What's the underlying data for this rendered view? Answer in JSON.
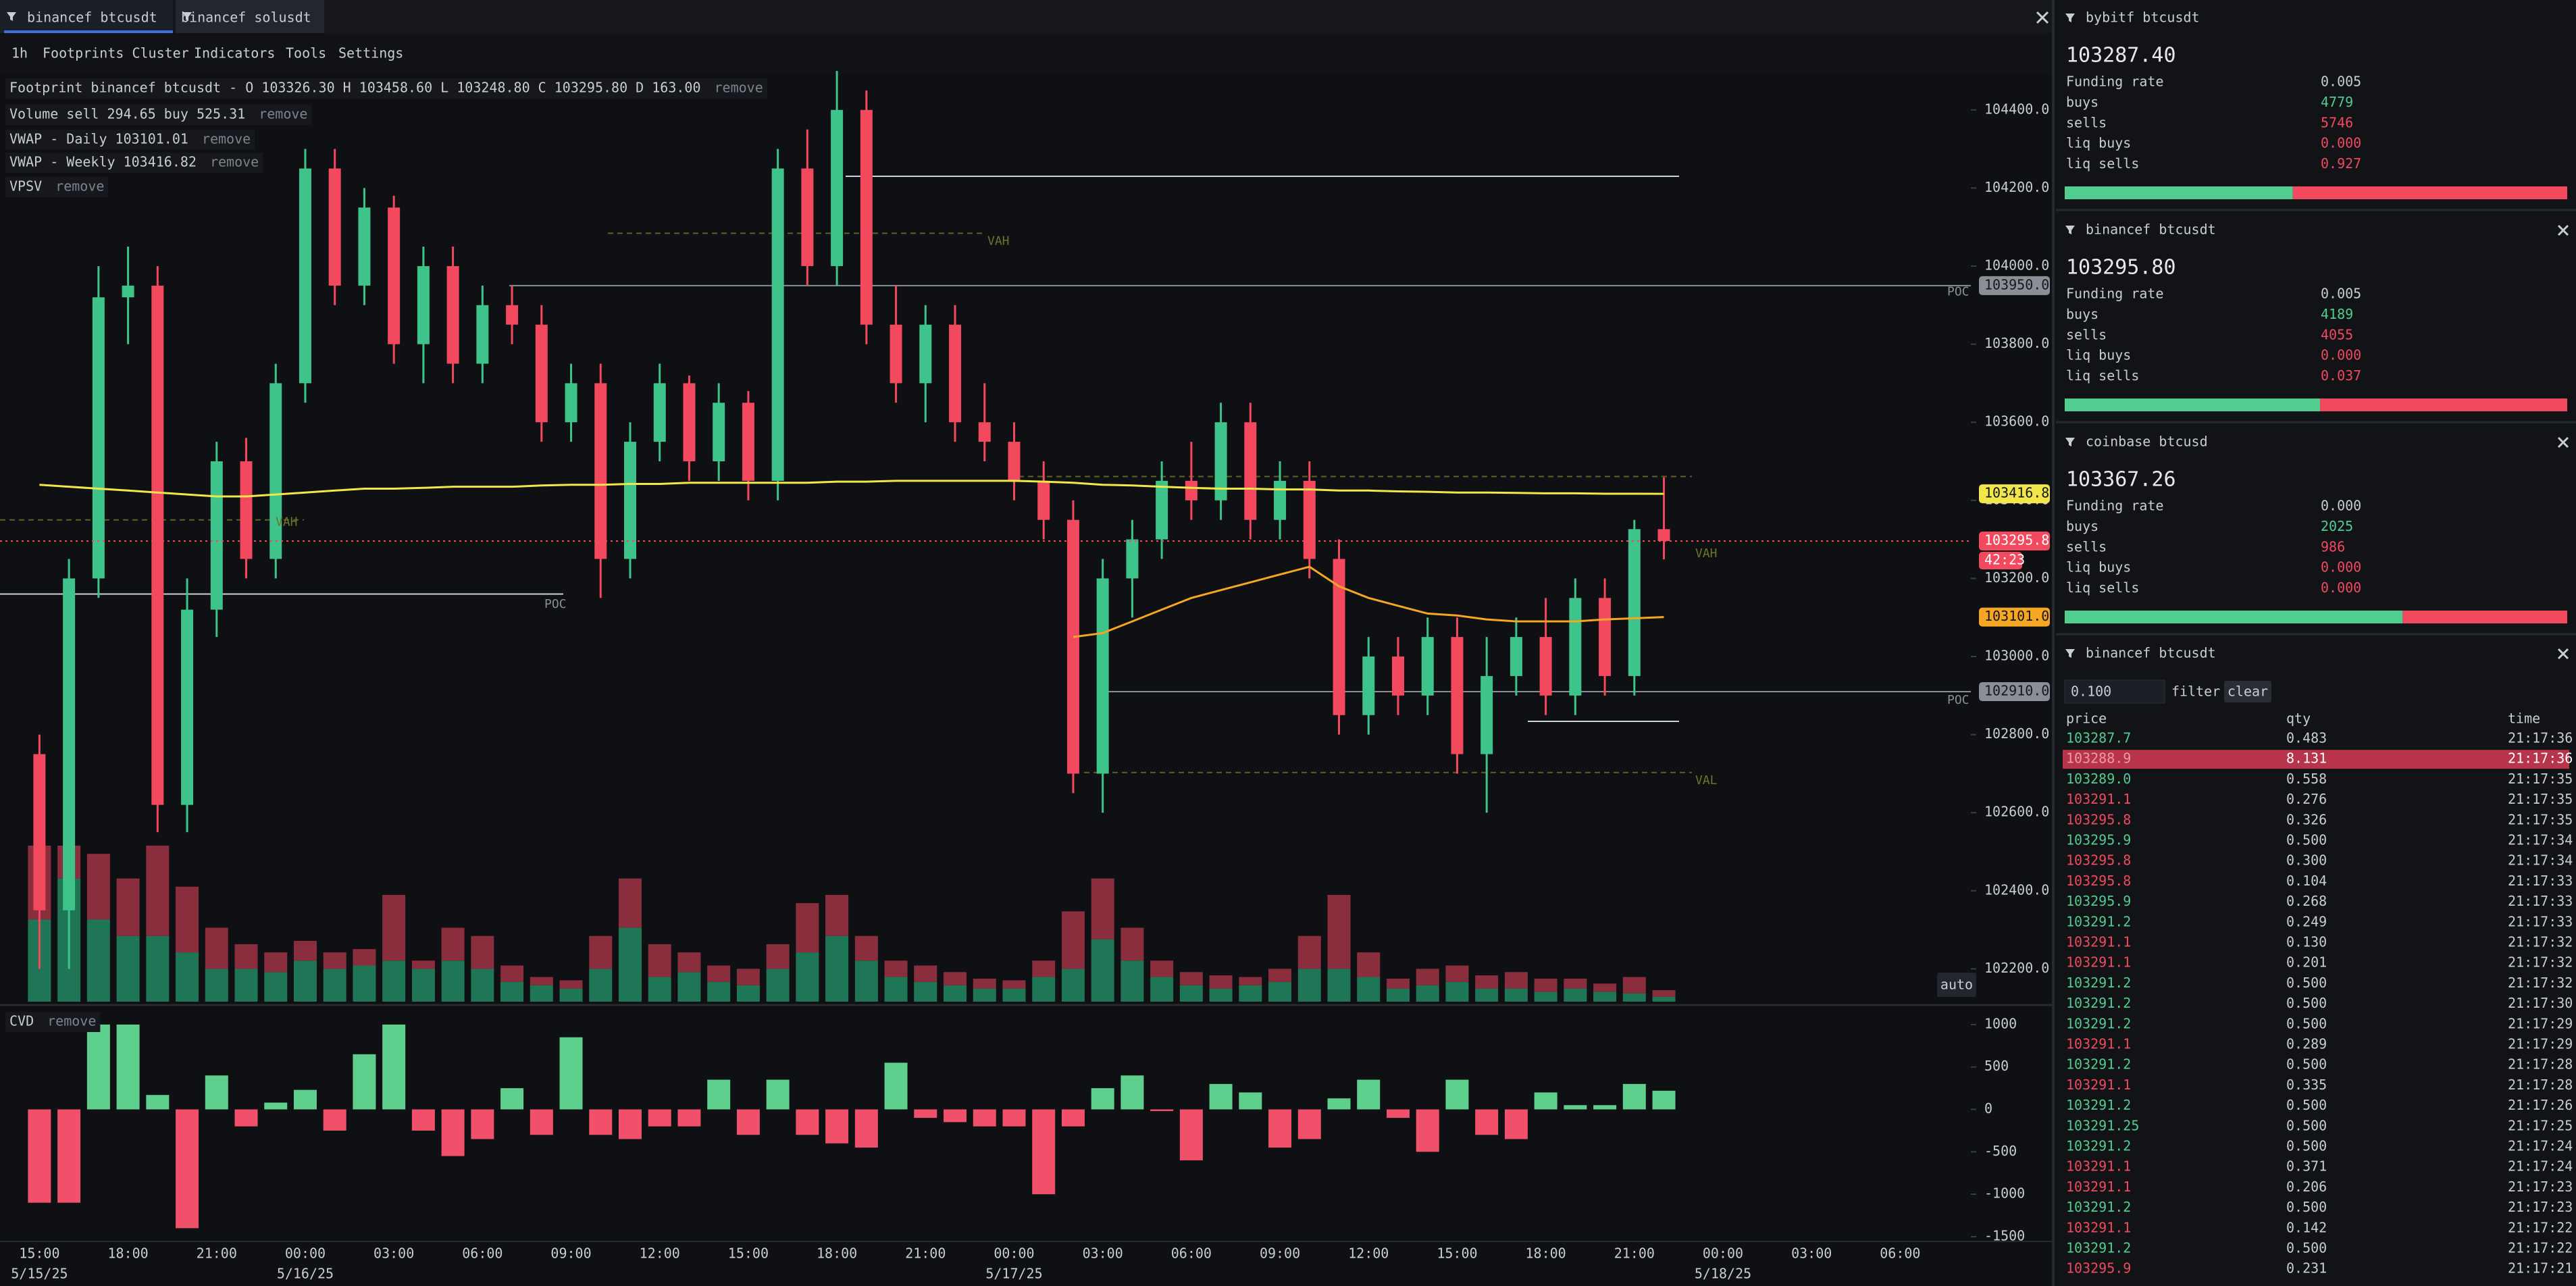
{
  "tabs": [
    "binancef btcusdt",
    "binancef solusdt"
  ],
  "menu": [
    "1h",
    "Footprints Cluster",
    "Indicators",
    "Tools",
    "Settings"
  ],
  "legend": [
    {
      "text": "Footprint binancef btcusdt - O 103326.30 H 103458.60 L 103248.80 C 103295.80 D 163.00",
      "action": "remove"
    },
    {
      "text": "Volume sell 294.65 buy 525.31",
      "action": "remove"
    },
    {
      "text": "VWAP - Daily 103101.01",
      "action": "remove"
    },
    {
      "text": "VWAP - Weekly 103416.82",
      "action": "remove"
    },
    {
      "text": "VPSV",
      "action": "remove"
    }
  ],
  "auto": "auto",
  "chart_data": [
    {
      "type": "candlestick",
      "ohlc": [
        [
          102750,
          102800,
          102200,
          102350
        ],
        [
          102350,
          103250,
          102200,
          103200
        ],
        [
          103200,
          104000,
          103150,
          103920
        ],
        [
          103920,
          104050,
          103800,
          103950
        ],
        [
          103950,
          104000,
          102550,
          102620
        ],
        [
          102620,
          103200,
          102550,
          103120
        ],
        [
          103120,
          103550,
          103050,
          103500
        ],
        [
          103500,
          103560,
          103200,
          103250
        ],
        [
          103250,
          103750,
          103200,
          103700
        ],
        [
          103700,
          104300,
          103650,
          104250
        ],
        [
          104250,
          104300,
          103900,
          103950
        ],
        [
          103950,
          104200,
          103900,
          104150
        ],
        [
          104150,
          104180,
          103750,
          103800
        ],
        [
          103800,
          104050,
          103700,
          104000
        ],
        [
          104000,
          104050,
          103700,
          103750
        ],
        [
          103750,
          103950,
          103700,
          103900
        ],
        [
          103900,
          103950,
          103800,
          103850
        ],
        [
          103850,
          103900,
          103550,
          103600
        ],
        [
          103600,
          103750,
          103550,
          103700
        ],
        [
          103700,
          103750,
          103150,
          103250
        ],
        [
          103250,
          103600,
          103200,
          103550
        ],
        [
          103550,
          103750,
          103500,
          103700
        ],
        [
          103700,
          103720,
          103450,
          103500
        ],
        [
          103500,
          103700,
          103450,
          103650
        ],
        [
          103650,
          103680,
          103400,
          103450
        ],
        [
          103450,
          104300,
          103400,
          104250
        ],
        [
          104250,
          104350,
          103950,
          104000
        ],
        [
          104000,
          104500,
          103950,
          104400
        ],
        [
          104400,
          104450,
          103800,
          103850
        ],
        [
          103850,
          103950,
          103650,
          103700
        ],
        [
          103700,
          103900,
          103600,
          103850
        ],
        [
          103850,
          103900,
          103550,
          103600
        ],
        [
          103600,
          103700,
          103500,
          103550
        ],
        [
          103550,
          103600,
          103400,
          103450
        ],
        [
          103450,
          103500,
          103300,
          103350
        ],
        [
          103350,
          103400,
          102650,
          102700
        ],
        [
          102700,
          103250,
          102600,
          103200
        ],
        [
          103200,
          103350,
          103100,
          103300
        ],
        [
          103300,
          103500,
          103250,
          103450
        ],
        [
          103450,
          103550,
          103350,
          103400
        ],
        [
          103400,
          103650,
          103350,
          103600
        ],
        [
          103600,
          103650,
          103300,
          103350
        ],
        [
          103350,
          103500,
          103300,
          103450
        ],
        [
          103450,
          103500,
          103200,
          103250
        ],
        [
          103250,
          103300,
          102800,
          102850
        ],
        [
          102850,
          103050,
          102800,
          103000
        ],
        [
          103000,
          103050,
          102850,
          102900
        ],
        [
          102900,
          103100,
          102850,
          103050
        ],
        [
          103050,
          103100,
          102700,
          102750
        ],
        [
          102750,
          103050,
          102600,
          102950
        ],
        [
          102950,
          103100,
          102900,
          103050
        ],
        [
          103050,
          103150,
          102850,
          102900
        ],
        [
          102900,
          103200,
          102850,
          103150
        ],
        [
          103150,
          103200,
          102900,
          102950
        ],
        [
          102950,
          103350,
          102900,
          103326.3
        ],
        [
          103326.3,
          103458.6,
          103248.8,
          103295.8
        ]
      ],
      "volume_buy": [
        50,
        75,
        50,
        40,
        40,
        30,
        20,
        20,
        18,
        25,
        20,
        22,
        25,
        20,
        25,
        20,
        12,
        10,
        8,
        20,
        45,
        15,
        18,
        12,
        10,
        20,
        30,
        40,
        25,
        15,
        12,
        10,
        8,
        8,
        15,
        20,
        38,
        25,
        15,
        10,
        8,
        10,
        12,
        20,
        20,
        15,
        8,
        10,
        12,
        8,
        8,
        6,
        8,
        6,
        5,
        3
      ],
      "volume_sell": [
        45,
        20,
        40,
        35,
        55,
        40,
        25,
        15,
        12,
        12,
        10,
        10,
        40,
        5,
        20,
        20,
        10,
        5,
        5,
        20,
        30,
        20,
        12,
        10,
        10,
        15,
        30,
        25,
        15,
        10,
        10,
        8,
        6,
        5,
        10,
        35,
        37,
        20,
        10,
        8,
        8,
        5,
        8,
        20,
        45,
        15,
        6,
        10,
        10,
        8,
        10,
        8,
        6,
        5,
        10,
        4
      ],
      "vwap_weekly": [
        103440,
        103435,
        103430,
        103425,
        103420,
        103415,
        103410,
        103410,
        103415,
        103420,
        103425,
        103430,
        103430,
        103432,
        103435,
        103435,
        103435,
        103438,
        103440,
        103440,
        103442,
        103442,
        103445,
        103445,
        103445,
        103445,
        103445,
        103448,
        103448,
        103450,
        103450,
        103450,
        103450,
        103450,
        103448,
        103445,
        103440,
        103438,
        103435,
        103432,
        103430,
        103430,
        103428,
        103428,
        103425,
        103425,
        103423,
        103422,
        103420,
        103420,
        103419,
        103418,
        103418,
        103417,
        103417,
        103416.82
      ],
      "vwap_daily": [
        null,
        null,
        null,
        null,
        null,
        null,
        null,
        null,
        null,
        null,
        null,
        null,
        null,
        null,
        null,
        null,
        null,
        null,
        null,
        null,
        null,
        null,
        null,
        null,
        null,
        null,
        null,
        null,
        null,
        null,
        null,
        null,
        null,
        null,
        null,
        103050,
        103060,
        103090,
        103120,
        103150,
        103170,
        103190,
        103210,
        103230,
        103180,
        103150,
        103130,
        103110,
        103105,
        103095,
        103090,
        103090,
        103090,
        103095,
        103098,
        103101.01
      ],
      "colors": {
        "up": "#3ec48a",
        "down": "#f2495f",
        "vol_up": "#1f7656",
        "vol_down": "#8a2e3d",
        "weekly": "#f2e64b",
        "daily": "#f5a623"
      },
      "ylim": [
        102116,
        104493
      ],
      "yticks": [
        {
          "value": 102200,
          "label": "102200.0"
        },
        {
          "value": 102400,
          "label": "102400.0"
        },
        {
          "value": 102600,
          "label": "102600.0"
        },
        {
          "value": 102800,
          "label": "102800.0"
        },
        {
          "value": 103000,
          "label": "103000.0"
        },
        {
          "value": 103200,
          "label": "103200.0"
        },
        {
          "value": 103400,
          "label": "103400.0"
        },
        {
          "value": 103600,
          "label": "103600.0"
        },
        {
          "value": 103800,
          "label": "103800.0"
        },
        {
          "value": 104000,
          "label": "104000.0"
        },
        {
          "value": 104200,
          "label": "104200.0"
        },
        {
          "value": 104400,
          "label": "104400.0"
        }
      ],
      "grid": false,
      "price_labels": [
        {
          "value": 103950,
          "label": "103950.0",
          "color": "#8a8f97"
        },
        {
          "value": 103416.8,
          "label": "103416.8",
          "color": "#f2e64b"
        },
        {
          "value": 103295.8,
          "label": "103295.8",
          "color": "#f2495f",
          "countdown": "42:23"
        },
        {
          "value": 103101,
          "label": "103101.0",
          "color": "#f5a623"
        },
        {
          "value": 102910,
          "label": "102910.0",
          "color": "#8a8f97"
        }
      ],
      "levels": [
        104230,
        103950,
        103160,
        102910,
        102834
      ],
      "value_area_lines": [
        104084,
        103461,
        102703,
        103350
      ],
      "annotations": [
        {
          "text": "VAH",
          "value": 104063
        },
        {
          "text": "VAH",
          "value": 103343
        },
        {
          "text": "POC",
          "value": 103133
        },
        {
          "text": "POC",
          "value": 103933
        },
        {
          "text": "VAH",
          "value": 103263
        },
        {
          "text": "POC",
          "value": 102888
        },
        {
          "text": "VAL",
          "value": 102682
        }
      ],
      "xticks": [
        "15:00",
        "18:00",
        "21:00",
        "00:00",
        "03:00",
        "06:00",
        "09:00",
        "12:00",
        "15:00",
        "18:00",
        "21:00",
        "00:00",
        "03:00",
        "06:00",
        "09:00",
        "12:00",
        "15:00",
        "18:00",
        "21:00",
        "00:00",
        "03:00",
        "06:00"
      ],
      "date_labels": [
        "5/15/25",
        "5/16/25",
        "5/17/25",
        "5/18/25"
      ]
    },
    {
      "type": "bar",
      "title": "CVD",
      "action": "remove",
      "values": [
        -1100,
        -1100,
        1000,
        1000,
        170,
        -1400,
        400,
        -200,
        80,
        230,
        -250,
        650,
        1000,
        -250,
        -550,
        -350,
        250,
        -300,
        850,
        -300,
        -350,
        -200,
        -200,
        350,
        -300,
        350,
        -300,
        -400,
        -450,
        550,
        -100,
        -150,
        -200,
        -200,
        -1000,
        -200,
        250,
        400,
        -20,
        -600,
        300,
        200,
        -450,
        -350,
        130,
        350,
        -100,
        -500,
        350,
        -300,
        -350,
        200,
        50,
        50,
        300,
        220
      ],
      "colors": {
        "up": "#5fcf8d",
        "down": "#f0506a"
      },
      "ylim": [
        -1540,
        1230
      ],
      "yticks": [
        1000,
        500,
        0,
        -500,
        -1000,
        -1500
      ]
    }
  ],
  "tickers": [
    {
      "title": "bybitf btcusdt",
      "price": "103287.40",
      "rows": [
        [
          "Funding rate",
          0.005
        ],
        [
          "buys",
          4779
        ],
        [
          "sells",
          5746
        ],
        [
          "liq buys",
          "0.000"
        ],
        [
          "liq sells",
          0.927
        ]
      ]
    },
    {
      "title": "binancef btcusdt",
      "price": "103295.80",
      "rows": [
        [
          "Funding rate",
          0.005
        ],
        [
          "buys",
          4189
        ],
        [
          "sells",
          4055
        ],
        [
          "liq buys",
          "0.000"
        ],
        [
          "liq sells",
          0.037
        ]
      ]
    },
    {
      "title": "coinbase btcusd",
      "price": "103367.26",
      "rows": [
        [
          "Funding rate",
          "0.000"
        ],
        [
          "buys",
          2025
        ],
        [
          "sells",
          986
        ],
        [
          "liq buys",
          "0.000"
        ],
        [
          "liq sells",
          "0.000"
        ]
      ]
    }
  ],
  "trades": {
    "title": "binancef btcusdt",
    "filter_value": "0.100",
    "filter_label": "filter",
    "clear": "clear",
    "columns": [
      "price",
      "qty",
      "time"
    ],
    "rows": [
      {
        "price": "103287.7",
        "qty": "0.483",
        "time": "21:17:36",
        "side": "buy"
      },
      {
        "price": "103288.9",
        "qty": "8.131",
        "time": "21:17:36",
        "side": "sell",
        "highlight": true
      },
      {
        "price": "103289.0",
        "qty": "0.558",
        "time": "21:17:35",
        "side": "buy"
      },
      {
        "price": "103291.1",
        "qty": "0.276",
        "time": "21:17:35",
        "side": "sell"
      },
      {
        "price": "103295.8",
        "qty": "0.326",
        "time": "21:17:35",
        "side": "sell"
      },
      {
        "price": "103295.9",
        "qty": "0.500",
        "time": "21:17:34",
        "side": "buy"
      },
      {
        "price": "103295.8",
        "qty": "0.300",
        "time": "21:17:34",
        "side": "sell"
      },
      {
        "price": "103295.8",
        "qty": "0.104",
        "time": "21:17:33",
        "side": "sell"
      },
      {
        "price": "103295.9",
        "qty": "0.268",
        "time": "21:17:33",
        "side": "buy"
      },
      {
        "price": "103291.2",
        "qty": "0.249",
        "time": "21:17:33",
        "side": "buy"
      },
      {
        "price": "103291.1",
        "qty": "0.130",
        "time": "21:17:32",
        "side": "sell"
      },
      {
        "price": "103291.1",
        "qty": "0.201",
        "time": "21:17:32",
        "side": "sell"
      },
      {
        "price": "103291.2",
        "qty": "0.500",
        "time": "21:17:32",
        "side": "buy"
      },
      {
        "price": "103291.2",
        "qty": "0.500",
        "time": "21:17:30",
        "side": "buy"
      },
      {
        "price": "103291.2",
        "qty": "0.500",
        "time": "21:17:29",
        "side": "buy"
      },
      {
        "price": "103291.1",
        "qty": "0.289",
        "time": "21:17:29",
        "side": "sell"
      },
      {
        "price": "103291.2",
        "qty": "0.500",
        "time": "21:17:28",
        "side": "buy"
      },
      {
        "price": "103291.1",
        "qty": "0.335",
        "time": "21:17:28",
        "side": "sell"
      },
      {
        "price": "103291.2",
        "qty": "0.500",
        "time": "21:17:26",
        "side": "buy"
      },
      {
        "price": "103291.25",
        "qty": "0.500",
        "time": "21:17:25",
        "side": "buy"
      },
      {
        "price": "103291.2",
        "qty": "0.500",
        "time": "21:17:24",
        "side": "buy"
      },
      {
        "price": "103291.1",
        "qty": "0.371",
        "time": "21:17:24",
        "side": "sell"
      },
      {
        "price": "103291.1",
        "qty": "0.206",
        "time": "21:17:23",
        "side": "sell"
      },
      {
        "price": "103291.2",
        "qty": "0.500",
        "time": "21:17:23",
        "side": "buy"
      },
      {
        "price": "103291.1",
        "qty": "0.142",
        "time": "21:17:22",
        "side": "sell"
      },
      {
        "price": "103291.2",
        "qty": "0.500",
        "time": "21:17:22",
        "side": "buy"
      },
      {
        "price": "103295.9",
        "qty": "0.231",
        "time": "21:17:21",
        "side": "sell"
      }
    ]
  }
}
